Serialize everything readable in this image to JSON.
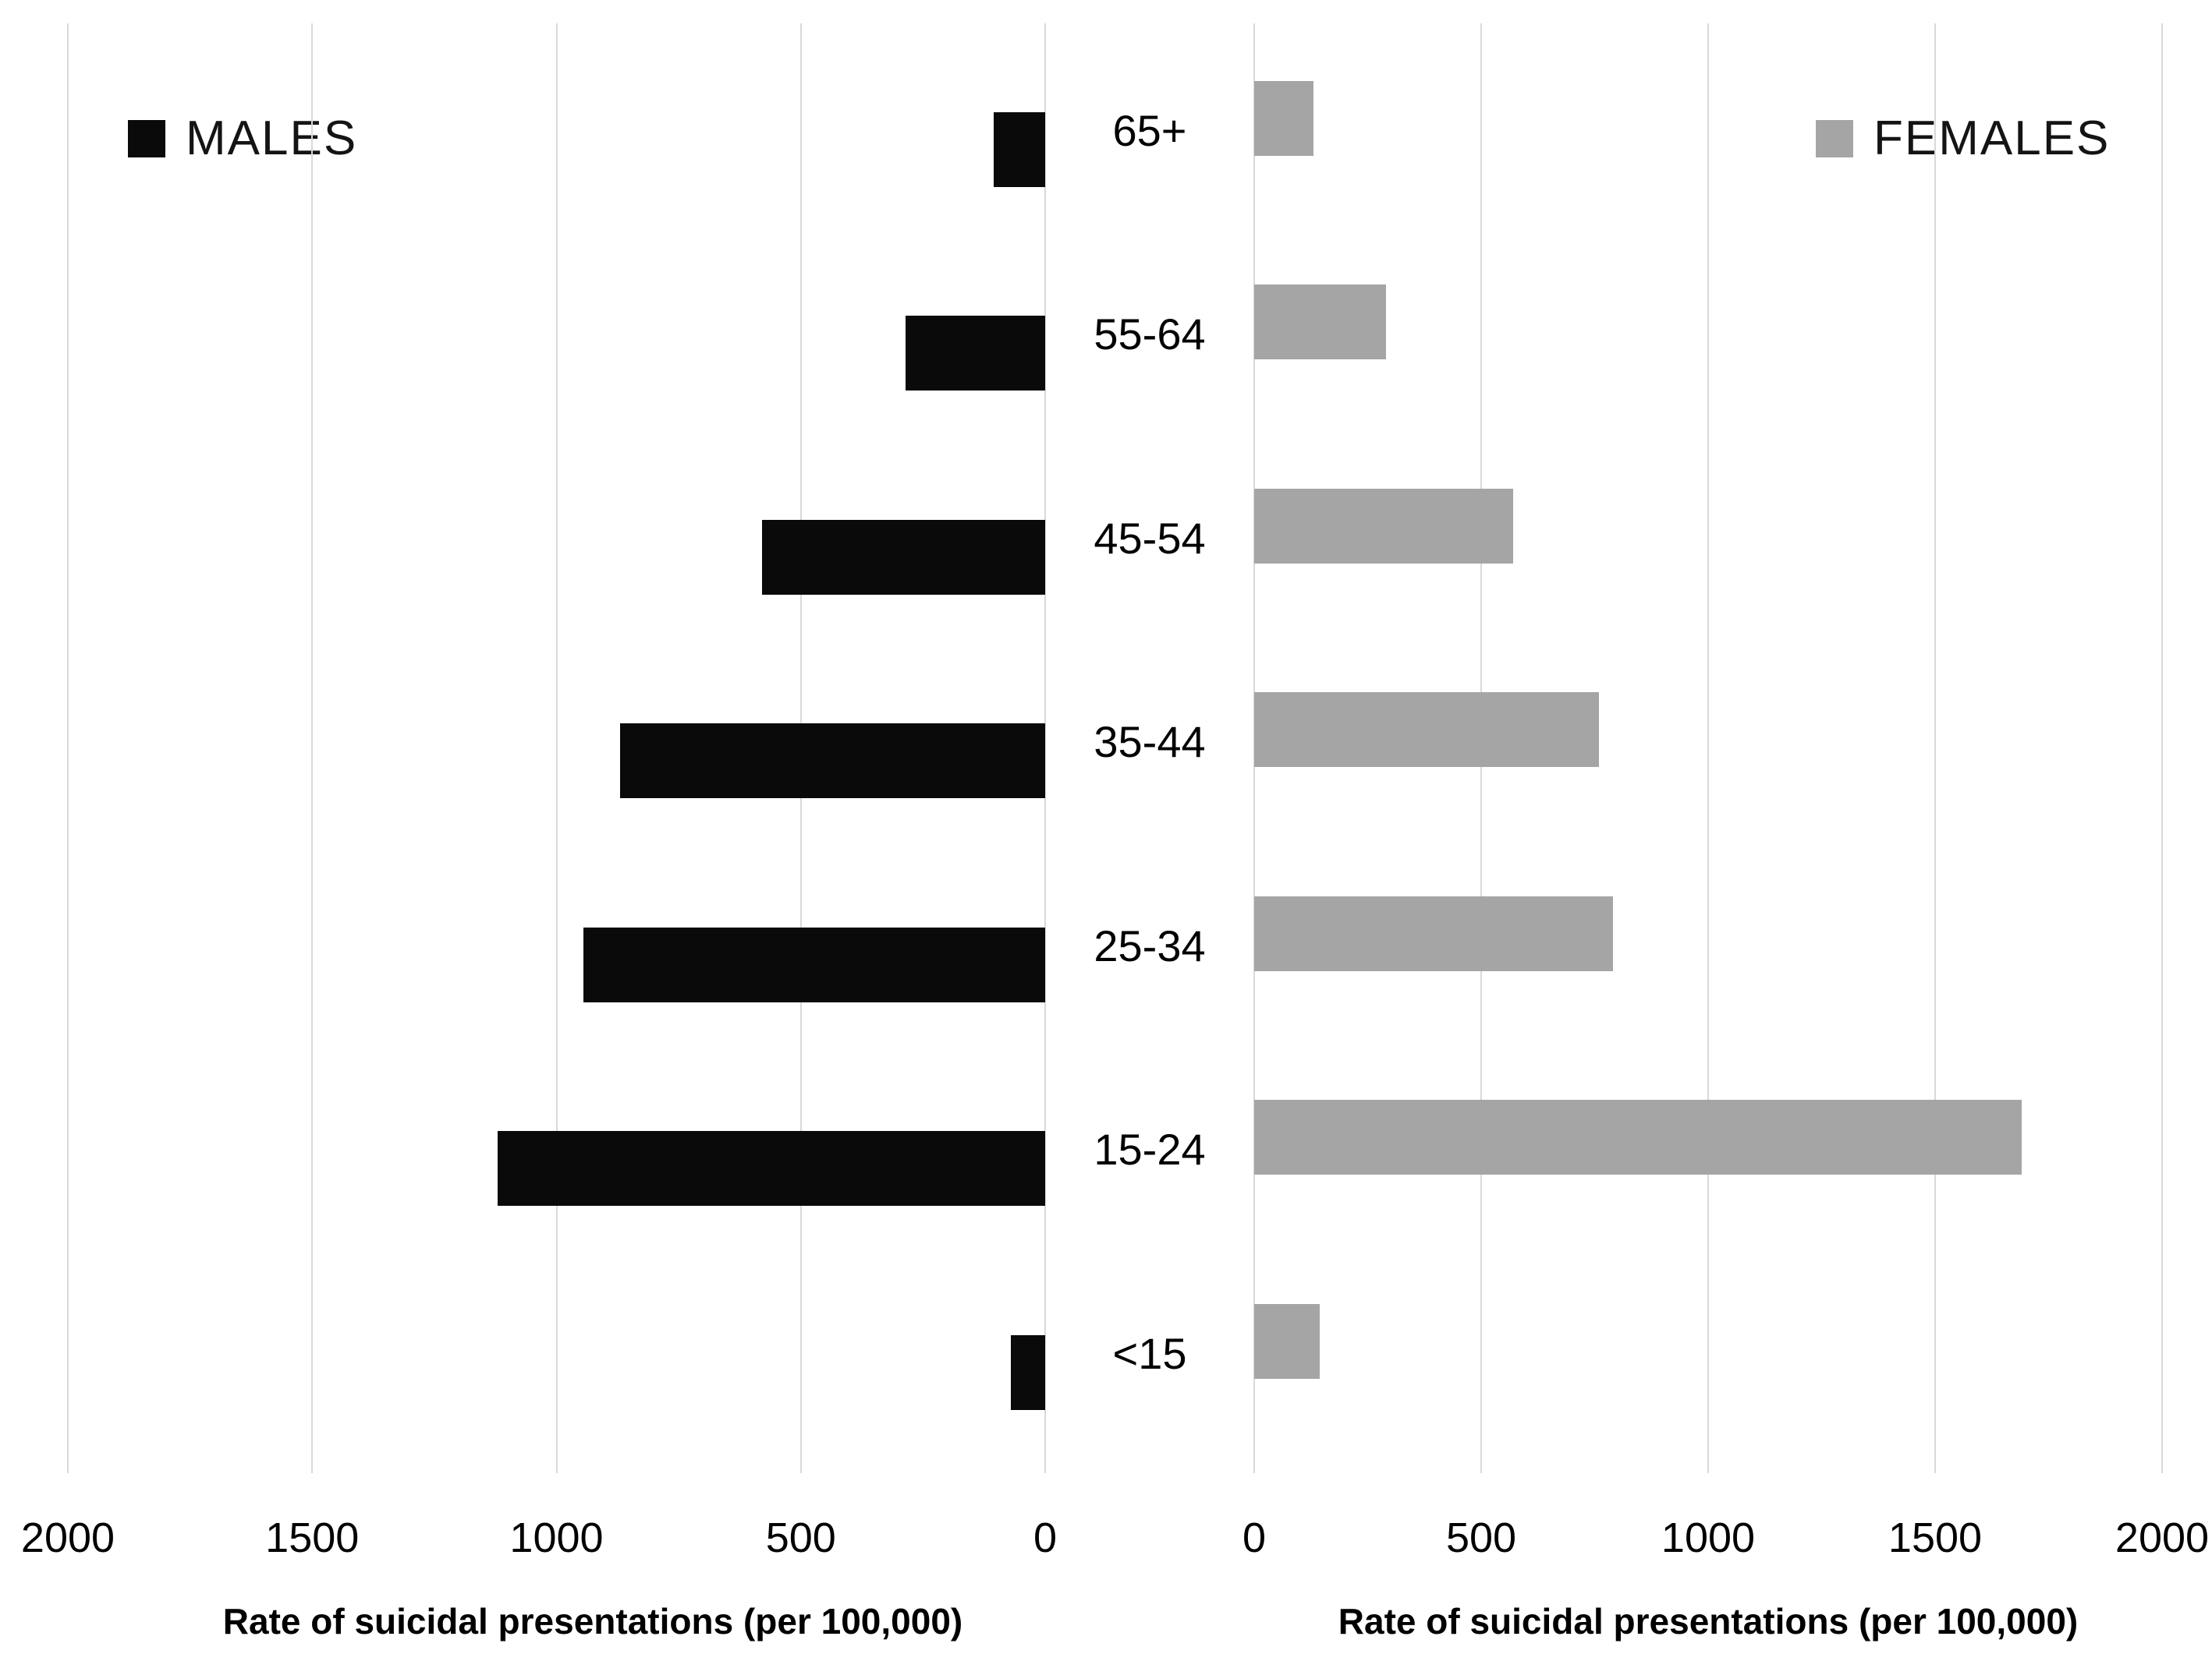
{
  "legend": {
    "males": "MALES",
    "females": "FEMALES"
  },
  "colors": {
    "male_bar": "#0a0a0a",
    "female_bar": "#a5a5a5",
    "gridline": "#d9d9d9",
    "text": "#000000",
    "background": "#ffffff"
  },
  "chart_data": {
    "type": "bar",
    "orientation": "horizontal-pyramid",
    "title": "",
    "categories": [
      "65+",
      "55-64",
      "45-54",
      "35-44",
      "25-34",
      "15-24",
      "<15"
    ],
    "series": [
      {
        "name": "MALES",
        "side": "left",
        "color": "#0a0a0a",
        "values": [
          105,
          285,
          580,
          870,
          945,
          1120,
          70
        ]
      },
      {
        "name": "FEMALES",
        "side": "right",
        "color": "#a5a5a5",
        "values": [
          130,
          290,
          570,
          760,
          790,
          1690,
          145
        ]
      }
    ],
    "xlim": [
      0,
      2000
    ],
    "x_ticks_left": [
      2000,
      1500,
      1000,
      500,
      0
    ],
    "x_ticks_right": [
      0,
      500,
      1000,
      1500,
      2000
    ],
    "xlabel_left": "Rate of suicidal presentations (per 100,000)",
    "xlabel_right": "Rate of suicidal presentations (per 100,000)",
    "ylabel": "",
    "grid": true,
    "legend_position": "top-corners"
  }
}
